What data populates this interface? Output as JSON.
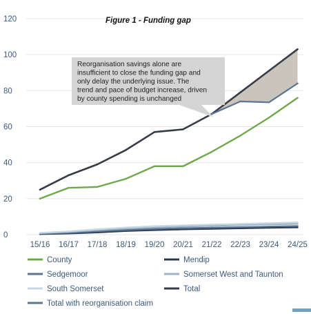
{
  "chart_data": {
    "type": "line",
    "title": "Figure 1 - Funding gap",
    "categories": [
      "15/16",
      "16/17",
      "17/18",
      "18/19",
      "19/20",
      "20/21",
      "21/22",
      "22/23",
      "23/24",
      "24/25"
    ],
    "ylim": [
      0,
      120
    ],
    "yticks": [
      0,
      20,
      40,
      60,
      80,
      100,
      120
    ],
    "grid": true,
    "legend_position": "bottom",
    "series": [
      {
        "name": "County",
        "color": "#6fa84a",
        "values": [
          20,
          26,
          26.5,
          31,
          38,
          38,
          46,
          55,
          65,
          76
        ]
      },
      {
        "name": "Mendip",
        "color": "#2b3a4f",
        "values": [
          0.3,
          0.6,
          1.2,
          2,
          2.5,
          2.9,
          3.2,
          3.5,
          3.8,
          4
        ]
      },
      {
        "name": "Sedgemoor",
        "color": "#5a7390",
        "values": [
          0.5,
          1,
          1.8,
          2.6,
          3.2,
          3.6,
          3.9,
          4.2,
          4.5,
          4.8
        ]
      },
      {
        "name": "Somerset West and Taunton",
        "color": "#9db3c6",
        "values": [
          0.8,
          1.5,
          2.5,
          3.4,
          4,
          4.5,
          4.9,
          5.3,
          5.7,
          6
        ]
      },
      {
        "name": "South Somerset",
        "color": "#c4d8e6",
        "values": [
          1,
          1.8,
          3,
          4,
          4.7,
          5.2,
          5.6,
          6,
          6.4,
          6.8
        ]
      },
      {
        "name": "Total",
        "color": "#363b47",
        "values": [
          25,
          33,
          39,
          47,
          57,
          58.5,
          67,
          79,
          91,
          103
        ]
      },
      {
        "name": "Total with reorganisation claim",
        "color": "#5b7591",
        "values": [
          null,
          null,
          null,
          null,
          null,
          null,
          67,
          74,
          73.5,
          84
        ]
      }
    ],
    "annotations": [
      {
        "text": "Reorganisation savings alone are insufficient to close the funding gap and only delay the underlying issue.  The trend and pace of budget increase, driven by county spending is unchanged"
      }
    ]
  }
}
